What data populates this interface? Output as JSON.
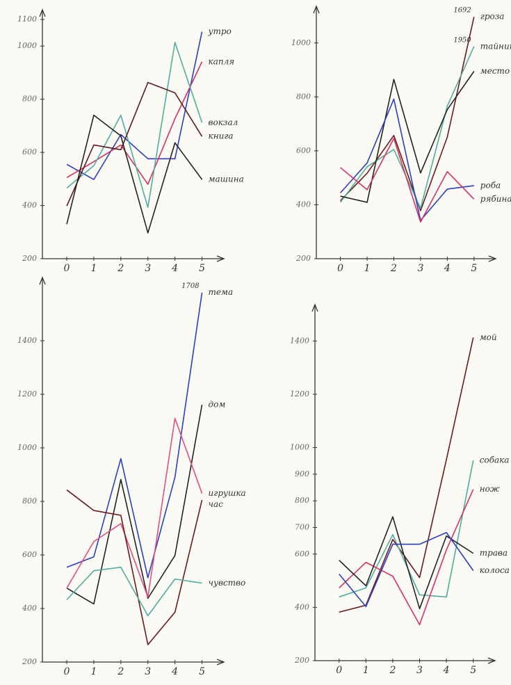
{
  "chart_data": [
    {
      "type": "line",
      "x": [
        0,
        1,
        2,
        3,
        4,
        5
      ],
      "xticks": [
        0,
        1,
        2,
        3,
        4,
        5
      ],
      "xlim": [
        -0.9,
        5.5
      ],
      "ylim": [
        200,
        1100
      ],
      "yticks": [
        200,
        400,
        600,
        800,
        1000,
        1100
      ],
      "series": [
        {
          "name": "утро",
          "color": "#2b3fc4",
          "values": [
            555,
            498,
            667,
            576,
            576,
            1054
          ]
        },
        {
          "name": "капля",
          "color": "#d8325e",
          "values": [
            505,
            565,
            628,
            480,
            727,
            941
          ]
        },
        {
          "name": "вокзал",
          "color": "#4fae9f",
          "values": [
            466,
            550,
            740,
            393,
            1014,
            712
          ]
        },
        {
          "name": "книга",
          "color": "#5a1c1c",
          "values": [
            398,
            628,
            610,
            863,
            824,
            660
          ]
        },
        {
          "name": "машина",
          "color": "#222222",
          "values": [
            330,
            740,
            662,
            297,
            636,
            498
          ]
        }
      ]
    },
    {
      "type": "line",
      "x": [
        0,
        1,
        2,
        3,
        4,
        5
      ],
      "xticks": [
        0,
        1,
        2,
        3,
        4,
        5
      ],
      "xlim": [
        -0.9,
        5.5
      ],
      "ylim": [
        200,
        1100
      ],
      "yticks": [
        200,
        400,
        600,
        800,
        1000
      ],
      "series": [
        {
          "name": "гроза",
          "note": "1692",
          "color": "#6a1a1a",
          "values": [
            415,
            517,
            657,
            378,
            651,
            1097
          ]
        },
        {
          "name": "тайник",
          "note": "1950",
          "color": "#4fae9f",
          "values": [
            409,
            541,
            605,
            387,
            766,
            987
          ]
        },
        {
          "name": "место",
          "color": "#222222",
          "values": [
            432,
            409,
            865,
            518,
            753,
            895
          ]
        },
        {
          "name": "роба",
          "color": "#2b3fc4",
          "values": [
            444,
            555,
            792,
            342,
            458,
            471
          ]
        },
        {
          "name": "рябина",
          "color": "#d8325e",
          "values": [
            538,
            456,
            646,
            336,
            523,
            421
          ]
        }
      ]
    },
    {
      "type": "line",
      "x": [
        0,
        1,
        2,
        3,
        4,
        5
      ],
      "xticks": [
        0,
        1,
        2,
        3,
        4,
        5
      ],
      "xlim": [
        -0.9,
        5.5
      ],
      "ylim": [
        200,
        1600
      ],
      "yticks": [
        200,
        400,
        600,
        800,
        1000,
        1200,
        1400
      ],
      "series": [
        {
          "name": "тема",
          "note": "1708",
          "color": "#2b3fc4",
          "values": [
            554,
            593,
            960,
            515,
            890,
            1580
          ]
        },
        {
          "name": "дом",
          "color": "#222222",
          "values": [
            476,
            417,
            882,
            438,
            598,
            1161
          ]
        },
        {
          "name": "игрушка",
          "color": "#e0507e",
          "values": [
            476,
            650,
            717,
            443,
            1110,
            830
          ]
        },
        {
          "name": "час",
          "color": "#6a1a1a",
          "values": [
            843,
            766,
            748,
            265,
            386,
            805
          ]
        },
        {
          "name": "чувство",
          "color": "#4fae9f",
          "values": [
            433,
            541,
            554,
            373,
            510,
            495
          ]
        }
      ]
    },
    {
      "type": "line",
      "x": [
        0,
        1,
        2,
        3,
        4,
        5
      ],
      "xticks": [
        0,
        1,
        2,
        3,
        4,
        5
      ],
      "xlim": [
        -0.9,
        5.5
      ],
      "ylim": [
        200,
        1500
      ],
      "yticks": [
        200,
        400,
        600,
        700,
        800,
        900,
        1000,
        1200,
        1400
      ],
      "series": [
        {
          "name": "мой",
          "color": "#6a1a1a",
          "values": [
            382,
            408,
            655,
            512,
            955,
            1413
          ]
        },
        {
          "name": "собака",
          "color": "#4fae9f",
          "values": [
            439,
            473,
            673,
            447,
            439,
            952
          ]
        },
        {
          "name": "нож",
          "color": "#d8325e",
          "values": [
            473,
            569,
            517,
            335,
            616,
            843
          ]
        },
        {
          "name": "трава",
          "color": "#222222",
          "values": [
            577,
            481,
            740,
            395,
            668,
            603
          ]
        },
        {
          "name": "колоса",
          "color": "#2b3fc4",
          "values": [
            525,
            403,
            637,
            637,
            681,
            538
          ]
        }
      ]
    }
  ]
}
